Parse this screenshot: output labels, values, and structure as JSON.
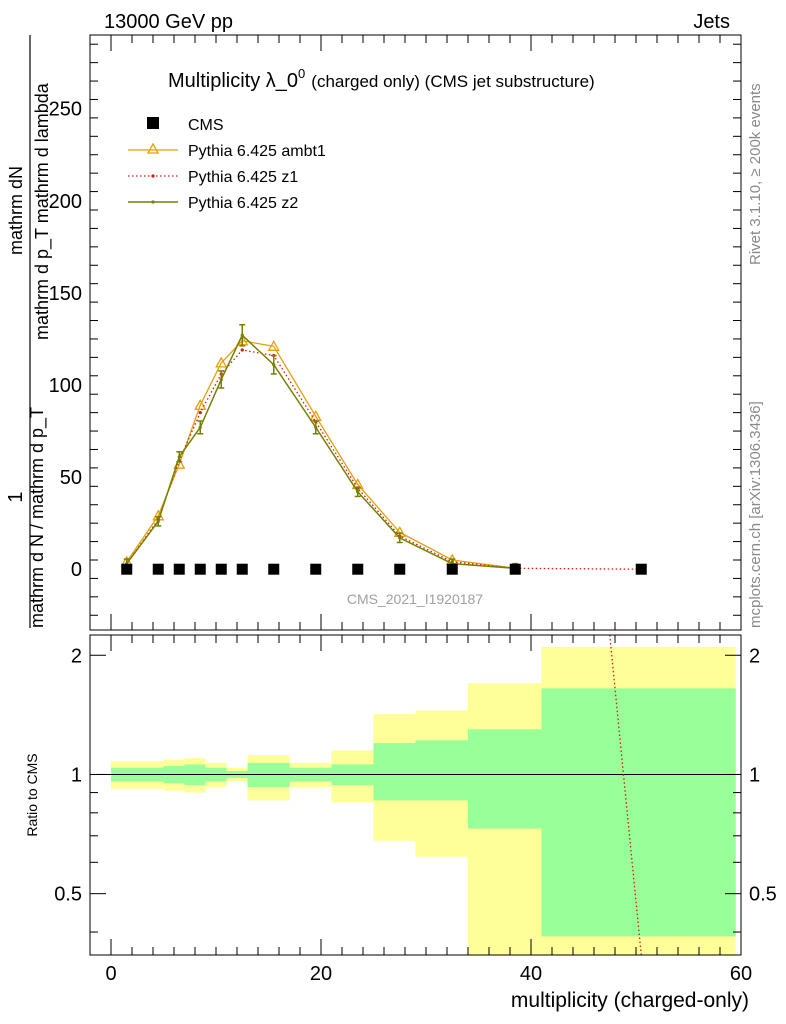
{
  "header": {
    "left": "13000 GeV pp",
    "right": "Jets"
  },
  "side_text": {
    "top": "Rivet 3.1.10, ≥ 200k events",
    "bottom": "mcplots.cern.ch [arXiv:1306.3436]"
  },
  "chart_data": [
    {
      "type": "line",
      "title_main": "Multiplicity λ_0",
      "title_sup": "0",
      "title_small": "(charged only) (CMS jet substructure)",
      "watermark": "CMS_2021_I1920187",
      "ylabel_line1": "mathrm dN",
      "ylabel_line2": "mathrm d p_T mathrm d lambda",
      "ylabel_frac_top": "1",
      "ylabel_frac_bottom": "mathrm d N / mathrm d p_T",
      "xlim": [
        -2,
        60
      ],
      "ylim": [
        -33,
        290
      ],
      "yticks": [
        0,
        50,
        100,
        150,
        200,
        250
      ],
      "ytick_labels": [
        "0",
        "50",
        "100",
        "150",
        "200",
        "250"
      ],
      "legend": [
        {
          "label": "CMS",
          "color": "#000000",
          "style": "square"
        },
        {
          "label": "Pythia 6.425 ambt1",
          "color": "#e69e0f",
          "style": "triangle"
        },
        {
          "label": "Pythia 6.425 z1",
          "color": "#d41c0c",
          "style": "dotted"
        },
        {
          "label": "Pythia 6.425 z2",
          "color": "#758000",
          "style": "solid"
        }
      ],
      "data_x": [
        1.5,
        4.5,
        6.5,
        8.5,
        10.5,
        12.5,
        15.5,
        19.5,
        23.5,
        27.5,
        32.5,
        38.5,
        50.5
      ],
      "cms_values": [
        0,
        0,
        0,
        0,
        0,
        0,
        0,
        0,
        0,
        0,
        0,
        0,
        0
      ],
      "series": [
        {
          "name": "Pythia 6.425 ambt1",
          "x": [
            1.5,
            4.5,
            6.5,
            8.5,
            10.5,
            12.5,
            15.5,
            19.5,
            23.5,
            27.5,
            32.5,
            38.5
          ],
          "values": [
            4,
            29,
            57,
            89,
            112,
            124,
            121,
            83,
            46,
            20,
            5,
            0.5
          ],
          "color": "#e69e0f"
        },
        {
          "name": "Pythia 6.425 z1",
          "x": [
            1.5,
            4.5,
            6.5,
            8.5,
            10.5,
            12.5,
            15.5,
            19.5,
            23.5,
            27.5,
            32.5,
            38.5,
            50.5
          ],
          "values": [
            3,
            27,
            59,
            85,
            106,
            119,
            116,
            80,
            44,
            18,
            4,
            0.5,
            0
          ],
          "color": "#d41c0c"
        },
        {
          "name": "Pythia 6.425 z2",
          "x": [
            1.5,
            4.5,
            6.5,
            8.5,
            10.5,
            12.5,
            15.5,
            19.5,
            23.5,
            27.5,
            32.5,
            38.5
          ],
          "values": [
            3,
            26,
            61,
            77,
            103,
            127,
            111,
            77,
            42,
            17,
            3,
            0.5
          ],
          "color": "#758000"
        }
      ]
    },
    {
      "type": "line",
      "ylabel": "Ratio to CMS",
      "xlabel": "multiplicity (charged-only)",
      "xlim": [
        -2,
        60
      ],
      "ylim": [
        0.35,
        2.25
      ],
      "yticks": [
        0.5,
        1,
        2
      ],
      "ytick_labels": [
        "0.5",
        "1",
        "2"
      ],
      "xticks": [
        0,
        20,
        40,
        60
      ],
      "xtick_labels": [
        "0",
        "20",
        "40",
        "60"
      ],
      "bins": [
        {
          "lo": 0,
          "hi": 3,
          "g_lo": 0.96,
          "g_hi": 1.04,
          "y_lo": 0.92,
          "y_hi": 1.08
        },
        {
          "lo": 3,
          "hi": 5,
          "g_lo": 0.96,
          "g_hi": 1.04,
          "y_lo": 0.92,
          "y_hi": 1.08
        },
        {
          "lo": 5,
          "hi": 7,
          "g_lo": 0.95,
          "g_hi": 1.05,
          "y_lo": 0.91,
          "y_hi": 1.09
        },
        {
          "lo": 7,
          "hi": 9,
          "g_lo": 0.94,
          "g_hi": 1.06,
          "y_lo": 0.9,
          "y_hi": 1.1
        },
        {
          "lo": 9,
          "hi": 11,
          "g_lo": 0.96,
          "g_hi": 1.04,
          "y_lo": 0.93,
          "y_hi": 1.07
        },
        {
          "lo": 11,
          "hi": 13,
          "g_lo": 0.98,
          "g_hi": 1.02,
          "y_lo": 0.96,
          "y_hi": 1.04
        },
        {
          "lo": 13,
          "hi": 17,
          "g_lo": 0.93,
          "g_hi": 1.07,
          "y_lo": 0.86,
          "y_hi": 1.12
        },
        {
          "lo": 17,
          "hi": 21,
          "g_lo": 0.96,
          "g_hi": 1.04,
          "y_lo": 0.93,
          "y_hi": 1.07
        },
        {
          "lo": 21,
          "hi": 25,
          "g_lo": 0.94,
          "g_hi": 1.06,
          "y_lo": 0.85,
          "y_hi": 1.15
        },
        {
          "lo": 25,
          "hi": 29,
          "g_lo": 0.86,
          "g_hi": 1.2,
          "y_lo": 0.68,
          "y_hi": 1.42
        },
        {
          "lo": 29,
          "hi": 34,
          "g_lo": 0.86,
          "g_hi": 1.22,
          "y_lo": 0.62,
          "y_hi": 1.45
        },
        {
          "lo": 34,
          "hi": 41,
          "g_lo": 0.73,
          "g_hi": 1.3,
          "y_lo": 0.35,
          "y_hi": 1.7
        },
        {
          "lo": 41,
          "hi": 59.5,
          "g_lo": 0.39,
          "g_hi": 1.65,
          "y_lo": 0.35,
          "y_hi": 2.1
        }
      ],
      "z1_ratio_line": {
        "x": [
          47.5,
          50.5
        ],
        "values": [
          2.25,
          0.35
        ],
        "color": "#d41c0c"
      }
    }
  ]
}
